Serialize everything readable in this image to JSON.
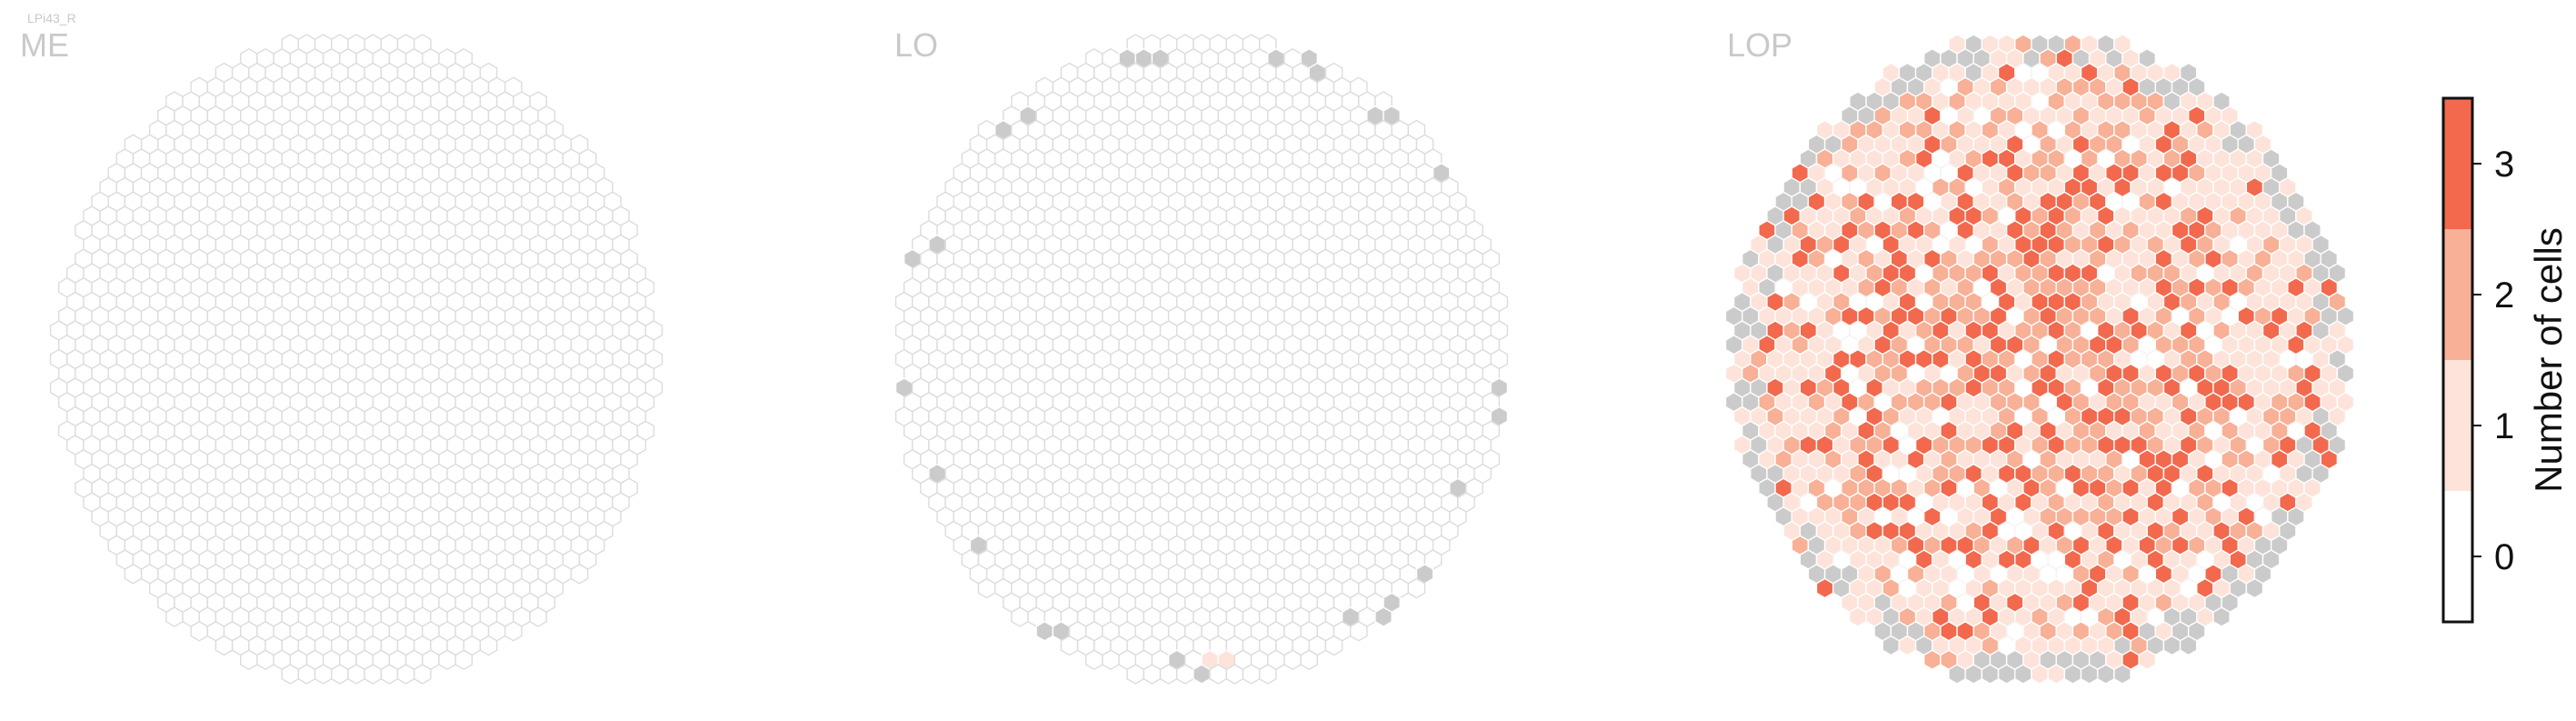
{
  "figure": {
    "tag": "LPi43_R"
  },
  "chart_data": {
    "type": "heatmap",
    "description_kind": "hexagonal column coverage maps",
    "panels": [
      {
        "title": "ME",
        "counts": {
          "0": "all columns"
        },
        "uncovered_edge_columns": 0
      },
      {
        "title": "LO",
        "counts": {
          "1": 1
        },
        "uncovered_edge_columns": 17
      },
      {
        "title": "LOP",
        "counts": {
          "1": "majority",
          "2": "many",
          "3": "some"
        },
        "uncovered_edge_columns": 46
      }
    ],
    "colorbar": {
      "label": "Number of cells",
      "ticks": [
        "0",
        "1",
        "2",
        "3"
      ],
      "range": [
        -0.5,
        3.5
      ],
      "colors": [
        "#ffffff",
        "#fde3d9",
        "#f8b096",
        "#f2694e"
      ]
    },
    "colors": {
      "empty_stroke": "#dcdcdc",
      "uncovered": "#cbcbcb",
      "count_1": "#fde3d9",
      "count_2": "#f8b096",
      "count_3": "#f2694e"
    }
  }
}
